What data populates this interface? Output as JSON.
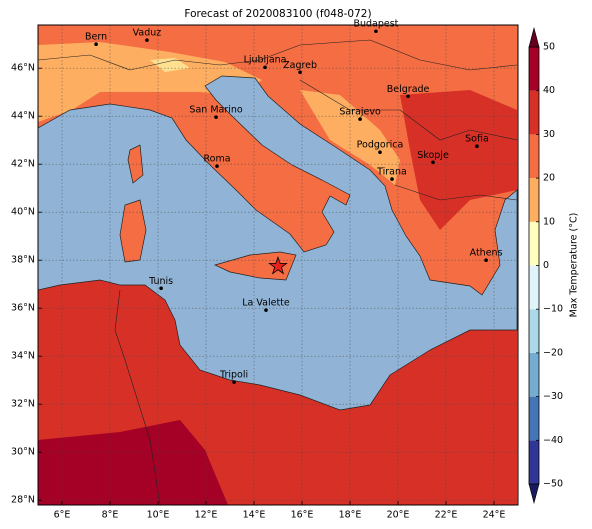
{
  "chart_data": {
    "type": "map",
    "title": "Forecast of 2020083100 (f048-072)",
    "xlim": [
      5,
      25
    ],
    "ylim": [
      27.8,
      47.8
    ],
    "xticks": [
      {
        "value": 6,
        "label": "6°E"
      },
      {
        "value": 8,
        "label": "8°E"
      },
      {
        "value": 10,
        "label": "10°E"
      },
      {
        "value": 12,
        "label": "12°E"
      },
      {
        "value": 14,
        "label": "14°E"
      },
      {
        "value": 16,
        "label": "16°E"
      },
      {
        "value": 18,
        "label": "18°E"
      },
      {
        "value": 20,
        "label": "20°E"
      },
      {
        "value": 22,
        "label": "22°E"
      },
      {
        "value": 24,
        "label": "24°E"
      }
    ],
    "yticks": [
      {
        "value": 28,
        "label": "28°N"
      },
      {
        "value": 30,
        "label": "30°N"
      },
      {
        "value": 32,
        "label": "32°N"
      },
      {
        "value": 34,
        "label": "34°N"
      },
      {
        "value": 36,
        "label": "36°N"
      },
      {
        "value": 38,
        "label": "38°N"
      },
      {
        "value": 40,
        "label": "40°N"
      },
      {
        "value": 42,
        "label": "42°N"
      },
      {
        "value": 44,
        "label": "44°N"
      },
      {
        "value": 46,
        "label": "46°N"
      }
    ],
    "grid": true,
    "cities": [
      {
        "name": "Bern",
        "lon": 7.42,
        "lat": 47.0
      },
      {
        "name": "Vaduz",
        "lon": 9.54,
        "lat": 47.17
      },
      {
        "name": "Budapest",
        "lon": 19.08,
        "lat": 47.54
      },
      {
        "name": "Ljubljana",
        "lon": 14.46,
        "lat": 46.04
      },
      {
        "name": "Zagreb",
        "lon": 15.92,
        "lat": 45.83
      },
      {
        "name": "Belgrade",
        "lon": 20.42,
        "lat": 44.83
      },
      {
        "name": "San Marino",
        "lon": 12.42,
        "lat": 43.96
      },
      {
        "name": "Sarajevo",
        "lon": 18.42,
        "lat": 43.88
      },
      {
        "name": "Sofia",
        "lon": 23.29,
        "lat": 42.75
      },
      {
        "name": "Podgorica",
        "lon": 19.25,
        "lat": 42.5
      },
      {
        "name": "Skopje",
        "lon": 21.46,
        "lat": 42.08
      },
      {
        "name": "Roma",
        "lon": 12.46,
        "lat": 41.92
      },
      {
        "name": "Tirana",
        "lon": 19.75,
        "lat": 41.38
      },
      {
        "name": "Athens",
        "lon": 23.67,
        "lat": 38.0
      },
      {
        "name": "Tunis",
        "lon": 10.13,
        "lat": 36.83
      },
      {
        "name": "La Valette",
        "lon": 14.5,
        "lat": 35.92
      },
      {
        "name": "Tripoli",
        "lon": 13.17,
        "lat": 32.92
      }
    ],
    "marker": {
      "lon": 15.0,
      "lat": 37.75,
      "color": "#e8211d"
    },
    "colorbar": {
      "label": "Max Temperature (°C)",
      "ticks": [
        {
          "value": -50,
          "label": "−50"
        },
        {
          "value": -40,
          "label": "−40"
        },
        {
          "value": -30,
          "label": "−30"
        },
        {
          "value": -20,
          "label": "−20"
        },
        {
          "value": -10,
          "label": "−10"
        },
        0,
        10,
        20,
        30,
        40,
        50
      ],
      "colors": [
        "#313695",
        "#4575b4",
        "#74add1",
        "#abd9e9",
        "#e0f3f8",
        "#ffffbf",
        "#fdae61",
        "#f46d43",
        "#d73027",
        "#a50026"
      ]
    }
  }
}
